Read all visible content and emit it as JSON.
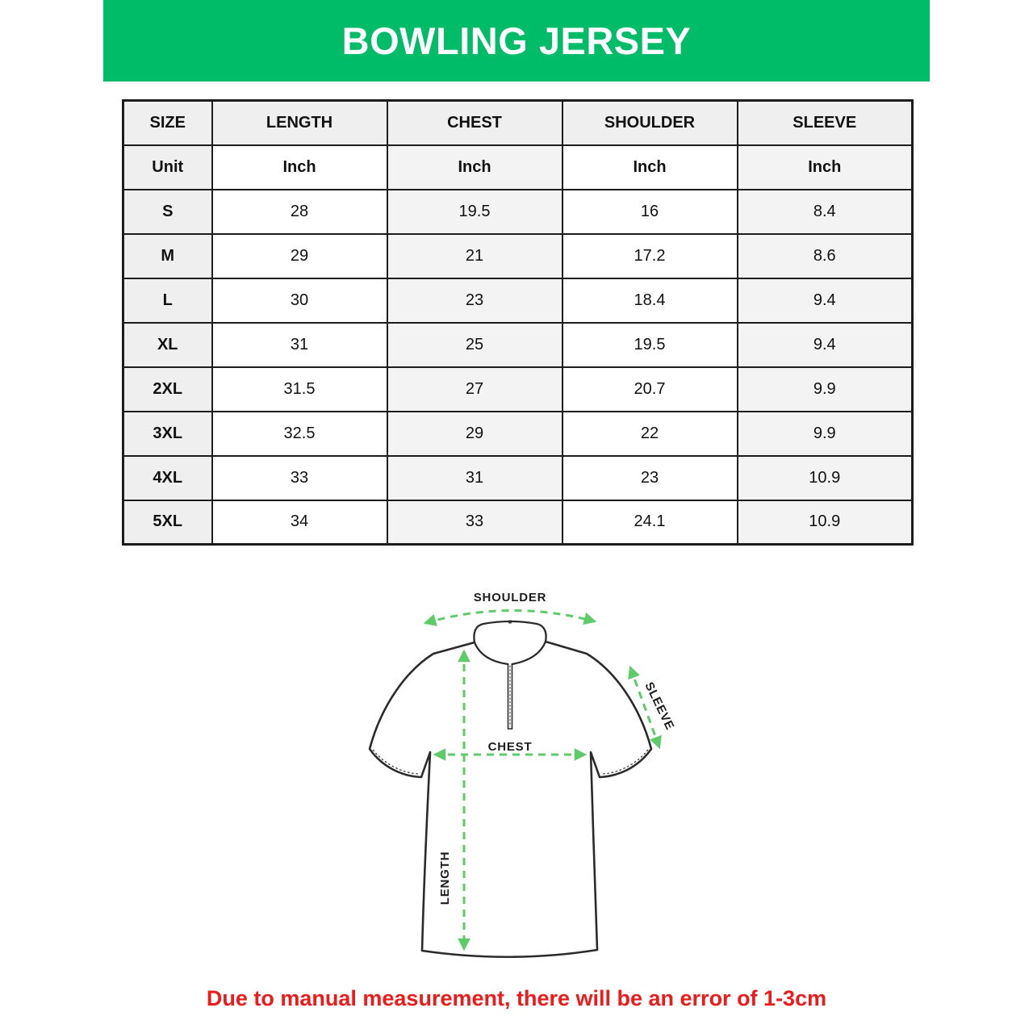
{
  "banner": {
    "title": "BOWLING JERSEY",
    "bg_color": "#00bc68"
  },
  "chart_data": {
    "type": "table",
    "title": "BOWLING JERSEY",
    "columns": [
      "SIZE",
      "LENGTH",
      "CHEST",
      "SHOULDER",
      "SLEEVE"
    ],
    "units": [
      "Unit",
      "Inch",
      "Inch",
      "Inch",
      "Inch"
    ],
    "rows": [
      [
        "S",
        "28",
        "19.5",
        "16",
        "8.4"
      ],
      [
        "M",
        "29",
        "21",
        "17.2",
        "8.6"
      ],
      [
        "L",
        "30",
        "23",
        "18.4",
        "9.4"
      ],
      [
        "XL",
        "31",
        "25",
        "19.5",
        "9.4"
      ],
      [
        "2XL",
        "31.5",
        "27",
        "20.7",
        "9.9"
      ],
      [
        "3XL",
        "32.5",
        "29",
        "22",
        "9.9"
      ],
      [
        "4XL",
        "33",
        "31",
        "23",
        "10.9"
      ],
      [
        "5XL",
        "34",
        "33",
        "24.1",
        "10.9"
      ]
    ],
    "layout": {
      "header_bg": "#efefef",
      "stripe_bg": "#f3f3f3",
      "border_color": "#1c1c1c"
    }
  },
  "diagram": {
    "labels": {
      "shoulder": "SHOULDER",
      "sleeve": "SLEEVE",
      "chest": "CHEST",
      "length": "LENGTH"
    },
    "arrow_color": "#5ecb69",
    "outline_color": "#2b2b2b"
  },
  "footnote": {
    "text": "Due to manual measurement, there will be an error of 1-3cm",
    "color": "#ee1b1b"
  }
}
